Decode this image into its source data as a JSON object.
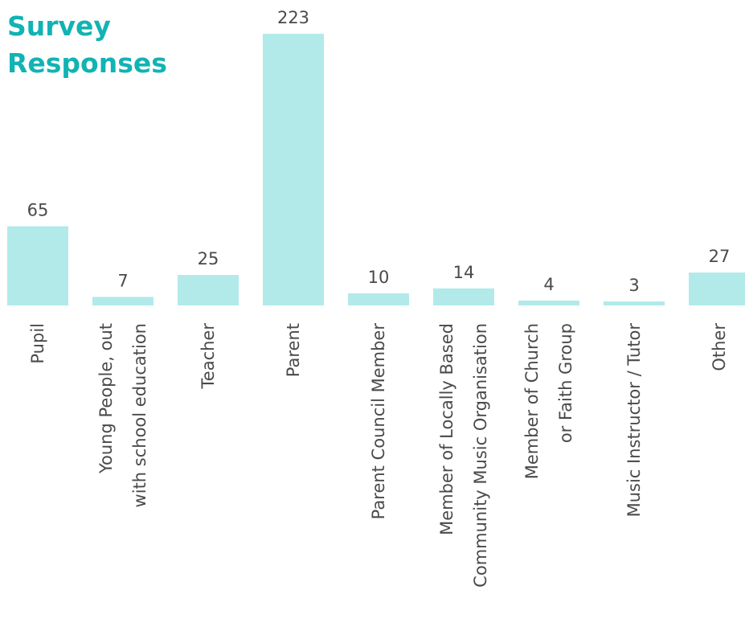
{
  "title": {
    "line1": "Survey",
    "line2": "Responses"
  },
  "colors": {
    "bar": "#b2eaea",
    "title": "#11b3b3",
    "text": "#4a4a4a"
  },
  "chart_data": {
    "type": "bar",
    "title": "Survey Responses",
    "categories": [
      [
        "Pupil"
      ],
      [
        "Young People, out",
        "with school education"
      ],
      [
        "Teacher"
      ],
      [
        "Parent"
      ],
      [
        "Parent Council Member"
      ],
      [
        "Member of Locally Based",
        "Community Music Organisation"
      ],
      [
        "Member of Church",
        "or Faith Group"
      ],
      [
        "Music Instructor / Tutor"
      ],
      [
        "Other"
      ]
    ],
    "values": [
      65,
      7,
      25,
      223,
      10,
      14,
      4,
      3,
      27
    ],
    "xlabel": "",
    "ylabel": "",
    "ylim": [
      0,
      223
    ],
    "grid": false,
    "legend": "none",
    "data_labels": true
  }
}
